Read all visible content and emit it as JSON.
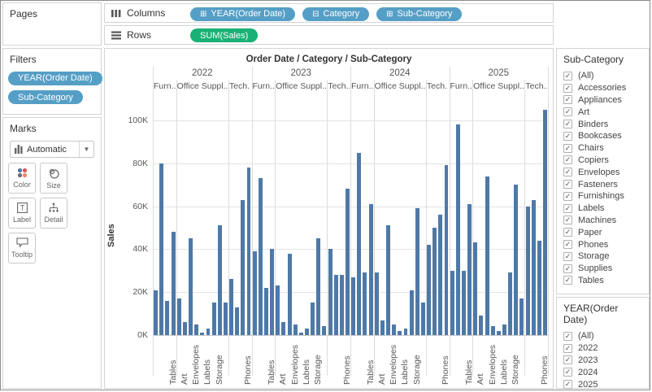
{
  "shelves": {
    "columns_label": "Columns",
    "rows_label": "Rows",
    "columns_pills": [
      {
        "prefix": "⊞",
        "label": "YEAR(Order Date)"
      },
      {
        "prefix": "⊟",
        "label": "Category"
      },
      {
        "prefix": "⊞",
        "label": "Sub-Category"
      }
    ],
    "rows_pills": [
      {
        "prefix": "",
        "label": "SUM(Sales)"
      }
    ]
  },
  "pages_card": {
    "title": "Pages"
  },
  "filters_card": {
    "title": "Filters",
    "pills": [
      "YEAR(Order Date)",
      "Sub-Category"
    ]
  },
  "marks_card": {
    "title": "Marks",
    "mark_type": "Automatic",
    "buttons": [
      "Color",
      "Size",
      "Label",
      "Detail",
      "Tooltip"
    ]
  },
  "chart_data": {
    "type": "bar",
    "title": "Order Date / Category / Sub-Category",
    "ylabel": "Sales",
    "y_ticks_k": [
      0,
      20,
      40,
      60,
      80,
      100
    ],
    "y_tick_labels": [
      "0K",
      "20K",
      "40K",
      "60K",
      "80K",
      "100K"
    ],
    "ylim": [
      0,
      110
    ],
    "bar_color": "#4e79a7",
    "years": [
      "2022",
      "2023",
      "2024",
      "2025"
    ],
    "category_labels": [
      "Furn..",
      "Office Suppl..",
      "Tech.."
    ],
    "category_sizes": [
      4,
      9,
      4
    ],
    "subcategory_order": [
      "Bookcases",
      "Chairs",
      "Furnishings",
      "Tables",
      "Appliances",
      "Art",
      "Binders",
      "Envelopes",
      "Fasteners",
      "Labels",
      "Paper",
      "Storage",
      "Supplies",
      "Accessories",
      "Copiers",
      "Machines",
      "Phones"
    ],
    "x_label_slots": [
      3,
      5,
      7,
      9,
      11,
      16
    ],
    "series": [
      {
        "year": "2022",
        "values_k": [
          21,
          80,
          16,
          48,
          17,
          6,
          45,
          5,
          1,
          3,
          15,
          51,
          15,
          26,
          13,
          63,
          78
        ]
      },
      {
        "year": "2023",
        "values_k": [
          39,
          73,
          22,
          40,
          23,
          6,
          38,
          5,
          1,
          3,
          15,
          45,
          4,
          40,
          28,
          28,
          68
        ]
      },
      {
        "year": "2024",
        "values_k": [
          27,
          85,
          29,
          61,
          29,
          7,
          51,
          5,
          2,
          3,
          21,
          59,
          15,
          42,
          50,
          56,
          79
        ]
      },
      {
        "year": "2025",
        "values_k": [
          30,
          98,
          30,
          61,
          43,
          9,
          74,
          4,
          2,
          5,
          29,
          70,
          17,
          60,
          63,
          44,
          105
        ]
      }
    ]
  },
  "subcategory_filter": {
    "title": "Sub-Category",
    "items": [
      "(All)",
      "Accessories",
      "Appliances",
      "Art",
      "Binders",
      "Bookcases",
      "Chairs",
      "Copiers",
      "Envelopes",
      "Fasteners",
      "Furnishings",
      "Labels",
      "Machines",
      "Paper",
      "Phones",
      "Storage",
      "Supplies",
      "Tables"
    ]
  },
  "year_filter": {
    "title": "YEAR(Order Date)",
    "items": [
      "(All)",
      "2022",
      "2023",
      "2024",
      "2025"
    ]
  },
  "glyphs": {
    "caret_down": "▼",
    "check": "✓"
  }
}
